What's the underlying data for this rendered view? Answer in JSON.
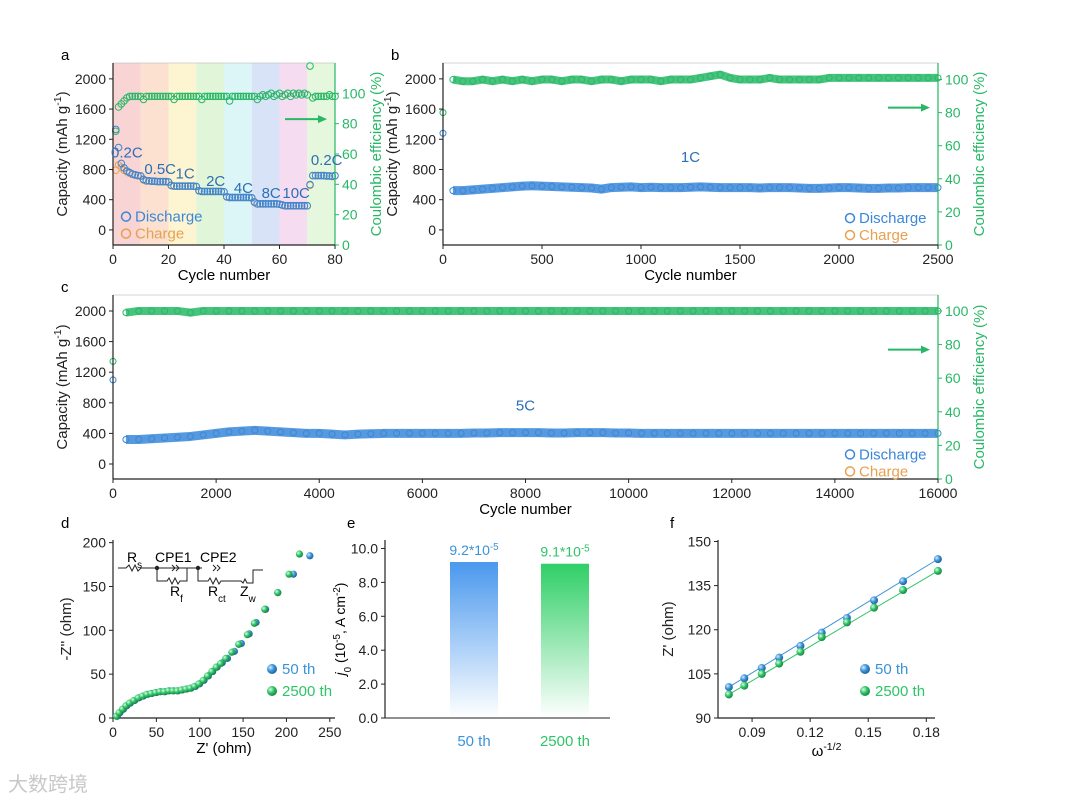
{
  "colors": {
    "discharge": "#3a87d8",
    "charge": "#e8a050",
    "ce": "#27b866",
    "axis": "#222222",
    "fifty": "#3a93d8",
    "twentyfivehundred": "#2fc467"
  },
  "watermark": "大数跨境",
  "chart_data": [
    {
      "panel": "a",
      "type": "scatter",
      "xlabel": "Cycle number",
      "ylabel": {
        "pre": "Capacity (mAh g",
        "sup": "-1",
        "post": ")"
      },
      "y2label": "Coulombic efficiency (%)",
      "xlim": [
        0,
        80
      ],
      "ylim": [
        -200,
        2210
      ],
      "y2lim": [
        0,
        120
      ],
      "xticks": [
        0,
        20,
        40,
        60,
        80
      ],
      "yticks": [
        0,
        400,
        800,
        1200,
        1600,
        2000
      ],
      "y2ticks": [
        0,
        20,
        40,
        60,
        80,
        100
      ],
      "rate_bands": [
        {
          "from": 0,
          "to": 10,
          "color": "#f8c9c9"
        },
        {
          "from": 10,
          "to": 20,
          "color": "#fbd9c4"
        },
        {
          "from": 20,
          "to": 30,
          "color": "#fdf3c6"
        },
        {
          "from": 30,
          "to": 40,
          "color": "#d9f3cf"
        },
        {
          "from": 40,
          "to": 50,
          "color": "#d3f3f5"
        },
        {
          "from": 50,
          "to": 60,
          "color": "#cfdcf5"
        },
        {
          "from": 60,
          "to": 70,
          "color": "#f2d3ee"
        },
        {
          "from": 70,
          "to": 80,
          "color": "#dff5d3"
        }
      ],
      "rate_labels": [
        {
          "text": "0.2C",
          "x": 5,
          "y": 960
        },
        {
          "text": "0.5C",
          "x": 17,
          "y": 740
        },
        {
          "text": "1C",
          "x": 26,
          "y": 680
        },
        {
          "text": "2C",
          "x": 37,
          "y": 580
        },
        {
          "text": "4C",
          "x": 47,
          "y": 490
        },
        {
          "text": "8C",
          "x": 57,
          "y": 420
        },
        {
          "text": "10C",
          "x": 66,
          "y": 420
        },
        {
          "text": "0.2C",
          "x": 77,
          "y": 860
        }
      ],
      "discharge": [
        1330,
        1090,
        880,
        820,
        780,
        760,
        740,
        730,
        720,
        715,
        670,
        650,
        650,
        645,
        645,
        640,
        640,
        640,
        640,
        635,
        590,
        580,
        580,
        580,
        580,
        580,
        580,
        580,
        580,
        575,
        520,
        510,
        510,
        510,
        510,
        510,
        510,
        510,
        510,
        505,
        440,
        430,
        430,
        430,
        430,
        430,
        430,
        430,
        430,
        425,
        370,
        345,
        345,
        345,
        345,
        345,
        345,
        345,
        345,
        340,
        330,
        320,
        320,
        320,
        320,
        320,
        320,
        320,
        320,
        320,
        600,
        720,
        720,
        720,
        720,
        720,
        715,
        715,
        710,
        720
      ],
      "charge": [
        790,
        860,
        830,
        790,
        770,
        750,
        735,
        725,
        718,
        712,
        660,
        648,
        648,
        643,
        643,
        638,
        638,
        638,
        638,
        633,
        585,
        578,
        578,
        578,
        578,
        578,
        578,
        578,
        578,
        573,
        515,
        508,
        508,
        508,
        508,
        508,
        508,
        508,
        508,
        503,
        435,
        428,
        428,
        428,
        428,
        428,
        428,
        428,
        428,
        423,
        360,
        343,
        343,
        343,
        343,
        343,
        343,
        343,
        343,
        338,
        325,
        318,
        318,
        318,
        318,
        318,
        318,
        318,
        318,
        318,
        590,
        718,
        718,
        718,
        718,
        718,
        713,
        713,
        708,
        718
      ],
      "ce": [
        75,
        91,
        93,
        95,
        97,
        98,
        98,
        98,
        98,
        98,
        96,
        98,
        98,
        98,
        98,
        98,
        98,
        98,
        98,
        98,
        98,
        96,
        98,
        98,
        98,
        98,
        98,
        98,
        98,
        98,
        98,
        96,
        98,
        98,
        98,
        98,
        98,
        98,
        98,
        98,
        98,
        95,
        98,
        98,
        98,
        98,
        98,
        98,
        98,
        98,
        98,
        96,
        98,
        99,
        98,
        99,
        100,
        98,
        99,
        100,
        98,
        99,
        100,
        98,
        100,
        99,
        100,
        99,
        100,
        99,
        118,
        97,
        98,
        98,
        98,
        98,
        98,
        99,
        98,
        98
      ],
      "legend": [
        "Discharge",
        "Charge"
      ]
    },
    {
      "panel": "b",
      "type": "scatter",
      "xlabel": "Cycle number",
      "ylabel": {
        "pre": "Capacity (mAh g",
        "sup": "-1",
        "post": ")"
      },
      "y2label": "Coulombic efficiency (%)",
      "xlim": [
        0,
        2500
      ],
      "ylim": [
        -200,
        2210
      ],
      "y2lim": [
        0,
        110
      ],
      "xticks": [
        0,
        500,
        1000,
        1500,
        2000,
        2500
      ],
      "yticks": [
        0,
        400,
        800,
        1200,
        1600,
        2000
      ],
      "y2ticks": [
        0,
        20,
        40,
        60,
        80,
        100
      ],
      "annotation": "1C",
      "x_step": 50,
      "discharge": [
        1280,
        520,
        520,
        530,
        540,
        550,
        560,
        570,
        580,
        585,
        580,
        575,
        570,
        565,
        560,
        555,
        540,
        560,
        565,
        570,
        560,
        565,
        560,
        560,
        560,
        565,
        570,
        565,
        560,
        560,
        560,
        560,
        555,
        560,
        560,
        560,
        555,
        550,
        550,
        555,
        560,
        560,
        555,
        550,
        550,
        555,
        555,
        560,
        560,
        560,
        560
      ],
      "ce": [
        80,
        100,
        99,
        99,
        100,
        99,
        100,
        99,
        100,
        99,
        100,
        100,
        99,
        100,
        100,
        99,
        100,
        100,
        99,
        100,
        100,
        100,
        99,
        100,
        100,
        100,
        101,
        102,
        103,
        101,
        100,
        100,
        100,
        101,
        100,
        100,
        100,
        100,
        100,
        101,
        101,
        101,
        101,
        101,
        101,
        101,
        101,
        101,
        101,
        101,
        101
      ],
      "legend": [
        "Discharge",
        "Charge"
      ]
    },
    {
      "panel": "c",
      "type": "scatter",
      "xlabel": "Cycle number",
      "ylabel": {
        "pre": "Capacity (mAh g",
        "sup": "-1",
        "post": ")"
      },
      "y2label": "Coulombic efficiency (%)",
      "xlim": [
        0,
        16000
      ],
      "ylim": [
        -196,
        2209
      ],
      "y2lim": [
        0,
        109.5
      ],
      "xticks": [
        0,
        2000,
        4000,
        6000,
        8000,
        10000,
        12000,
        14000,
        16000
      ],
      "yticks": [
        0,
        400,
        800,
        1200,
        1600,
        2000
      ],
      "y2ticks": [
        0,
        20,
        40,
        60,
        80,
        100
      ],
      "annotation": "5C",
      "x_step": 250,
      "discharge": [
        1100,
        320,
        320,
        330,
        340,
        350,
        360,
        380,
        400,
        420,
        430,
        440,
        430,
        420,
        410,
        400,
        400,
        390,
        380,
        390,
        395,
        400,
        400,
        400,
        400,
        400,
        400,
        400,
        405,
        405,
        410,
        410,
        410,
        410,
        405,
        405,
        410,
        410,
        410,
        405,
        405,
        400,
        400,
        400,
        400,
        400,
        400,
        400,
        400,
        400,
        400,
        400,
        400,
        400,
        400,
        400,
        400,
        400,
        400,
        400,
        400,
        400,
        400,
        400,
        400
      ],
      "ce": [
        70,
        99,
        100,
        100,
        100,
        100,
        99,
        100,
        100,
        100,
        100,
        100,
        100,
        100,
        100,
        100,
        100,
        100,
        100,
        100,
        100,
        100,
        100,
        100,
        100,
        100,
        100,
        100,
        100,
        100,
        100,
        100,
        100,
        100,
        100,
        100,
        100,
        100,
        100,
        100,
        100,
        100,
        100,
        100,
        100,
        100,
        100,
        100,
        100,
        100,
        100,
        100,
        100,
        100,
        100,
        100,
        100,
        100,
        100,
        100,
        100,
        100,
        100,
        100,
        100
      ],
      "legend": [
        "Discharge",
        "Charge"
      ]
    },
    {
      "panel": "d",
      "type": "scatter",
      "xlabel": "Z' (ohm)",
      "ylabel": "-Z'' (ohm)",
      "xlim": [
        0,
        256
      ],
      "ylim": [
        0,
        203
      ],
      "xticks": [
        0,
        50,
        100,
        150,
        200,
        250
      ],
      "yticks": [
        0,
        50,
        100,
        150,
        200
      ],
      "circuit_labels": {
        "rs": "R",
        "rs_sub": "s",
        "cpe1": "CPE1",
        "cpe2": "CPE2",
        "rf": "R",
        "rf_sub": "f",
        "rct": "R",
        "rct_sub": "ct",
        "zw": "Z",
        "zw_sub": "w"
      },
      "series": [
        {
          "name": "50 th",
          "points": [
            [
              5,
              2
            ],
            [
              8,
              6
            ],
            [
              12,
              10
            ],
            [
              16,
              14
            ],
            [
              20,
              17
            ],
            [
              25,
              20
            ],
            [
              30,
              23
            ],
            [
              35,
              25
            ],
            [
              40,
              27
            ],
            [
              45,
              28
            ],
            [
              50,
              29
            ],
            [
              55,
              30
            ],
            [
              60,
              30
            ],
            [
              65,
              31
            ],
            [
              70,
              31
            ],
            [
              75,
              31
            ],
            [
              80,
              32
            ],
            [
              85,
              33
            ],
            [
              90,
              34
            ],
            [
              95,
              36
            ],
            [
              100,
              39
            ],
            [
              105,
              43
            ],
            [
              110,
              48
            ],
            [
              115,
              53
            ],
            [
              120,
              58
            ],
            [
              126,
              63
            ],
            [
              132,
              68
            ],
            [
              140,
              76
            ],
            [
              148,
              85
            ],
            [
              157,
              96
            ],
            [
              165,
              109
            ],
            [
              176,
              124
            ],
            [
              190,
              143
            ],
            [
              208,
              164
            ],
            [
              227,
              185
            ]
          ]
        },
        {
          "name": "2500 th",
          "points": [
            [
              4,
              2
            ],
            [
              7,
              6
            ],
            [
              11,
              10
            ],
            [
              15,
              14
            ],
            [
              19,
              17
            ],
            [
              24,
              20
            ],
            [
              29,
              23
            ],
            [
              34,
              25
            ],
            [
              39,
              27
            ],
            [
              44,
              28
            ],
            [
              49,
              29
            ],
            [
              54,
              30
            ],
            [
              59,
              30
            ],
            [
              64,
              31
            ],
            [
              69,
              31
            ],
            [
              74,
              31
            ],
            [
              79,
              32
            ],
            [
              84,
              33
            ],
            [
              89,
              34
            ],
            [
              94,
              36
            ],
            [
              99,
              39
            ],
            [
              104,
              43
            ],
            [
              109,
              48
            ],
            [
              114,
              53
            ],
            [
              119,
              58
            ],
            [
              124,
              62
            ],
            [
              130,
              68
            ],
            [
              137,
              75
            ],
            [
              145,
              84
            ],
            [
              155,
              95
            ],
            [
              163,
              108
            ],
            [
              175,
              124
            ],
            [
              190,
              143
            ],
            [
              203,
              164
            ],
            [
              215,
              187
            ]
          ]
        }
      ]
    },
    {
      "panel": "e",
      "type": "bar",
      "ylabel": {
        "pre": "j",
        "sub": "0",
        "post": " (10",
        "sup": "-5",
        "post2": ", A cm",
        "sup2": "-2",
        "end": ")"
      },
      "ylim": [
        0,
        10.5
      ],
      "yticks": [
        "0.0",
        "2.0",
        "4.0",
        "6.0",
        "8.0",
        "10.0"
      ],
      "categories": [
        "50 th",
        "2500 th"
      ],
      "values": [
        9.2,
        9.1
      ],
      "data_labels": [
        {
          "base": "9.2*10",
          "sup": "-5"
        },
        {
          "base": "9.1*10",
          "sup": "-5"
        }
      ]
    },
    {
      "panel": "f",
      "type": "scatter",
      "xlabel": {
        "pre": "ω",
        "sup": "-1/2"
      },
      "ylabel": "Z' (ohm)",
      "xlim": [
        0.0724,
        0.1845
      ],
      "ylim": [
        90,
        150.5
      ],
      "xticks": [
        "0.09",
        "0.12",
        "0.15",
        "0.18"
      ],
      "yticks": [
        90,
        105,
        120,
        135,
        150
      ],
      "series": [
        {
          "name": "50 th",
          "x": [
            0.078,
            0.086,
            0.095,
            0.104,
            0.115,
            0.126,
            0.139,
            0.153,
            0.168,
            0.186
          ],
          "y": [
            100.5,
            103.5,
            107,
            110.5,
            114.5,
            119,
            124,
            130,
            136.5,
            144
          ]
        },
        {
          "name": "2500 th",
          "x": [
            0.078,
            0.086,
            0.095,
            0.104,
            0.115,
            0.126,
            0.139,
            0.153,
            0.168,
            0.186
          ],
          "y": [
            98,
            101,
            105,
            108.5,
            112.5,
            117.5,
            122.5,
            127.5,
            133.5,
            140
          ]
        }
      ]
    }
  ]
}
